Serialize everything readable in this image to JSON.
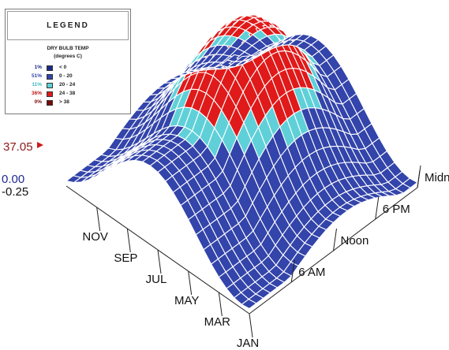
{
  "legend": {
    "title": "LEGEND",
    "subtitle_line1": "DRY BULB TEMP",
    "subtitle_line2": "(degrees C)",
    "rows": [
      {
        "pct": "1%",
        "range": "< 0",
        "color": "#1a2a8a",
        "pct_color": "#1a2a8a"
      },
      {
        "pct": "51%",
        "range": "0  -  20",
        "color": "#3344aa",
        "pct_color": "#3344aa"
      },
      {
        "pct": "11%",
        "range": "20  -  24",
        "color": "#5fd0d8",
        "pct_color": "#3fb8c2"
      },
      {
        "pct": "36%",
        "range": "24  -  38",
        "color": "#e01a1a",
        "pct_color": "#c01818"
      },
      {
        "pct": "0%",
        "range": "> 38",
        "color": "#7a0a0a",
        "pct_color": "#7a0a0a"
      }
    ]
  },
  "chart_data": {
    "type": "surface",
    "title": "",
    "z_labels": {
      "max": "37.05",
      "zero": "0.00",
      "min": "-0.25"
    },
    "z_label_colors": {
      "max": "#8b1a1a",
      "zero": "#1f2b8f",
      "min": "#111111"
    },
    "month_labels": [
      "JAN",
      "MAR",
      "MAY",
      "JUL",
      "SEP",
      "NOV"
    ],
    "hour_labels": [
      "6 AM",
      "Noon",
      "6 PM",
      "Midnight"
    ],
    "colors": {
      "below_0": "#1a2a8a",
      "0_20": "#3344aa",
      "20_24": "#5fd0d8",
      "24_38": "#e01a1a",
      "above_38": "#7a0a0a"
    }
  }
}
